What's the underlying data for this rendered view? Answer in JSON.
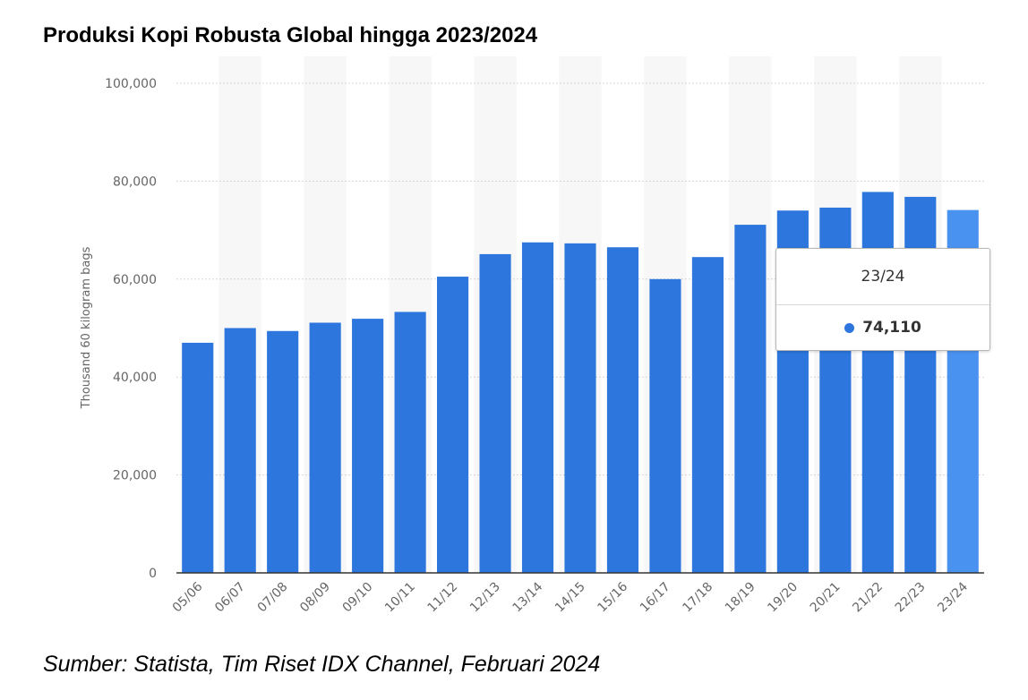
{
  "title": "Produksi Kopi Robusta Global hingga 2023/2024",
  "source": "Sumber: Statista, Tim Riset IDX Channel, Februari 2024",
  "colors": {
    "bar": "#2c76dd",
    "bar_highlight": "#4a92f0",
    "stripe": "#f7f7f7"
  },
  "tooltip": {
    "category": "23/24",
    "value": "74,110"
  },
  "chart_data": {
    "type": "bar",
    "ylabel": "Thousand 60 kilogram bags",
    "xlabel": "",
    "ylim": [
      0,
      100000
    ],
    "yticks": [
      0,
      20000,
      40000,
      60000,
      80000,
      100000
    ],
    "ytick_labels": [
      "0",
      "20,000",
      "40,000",
      "60,000",
      "80,000",
      "100,000"
    ],
    "grid": true,
    "categories": [
      "05/06",
      "06/07",
      "07/08",
      "08/09",
      "09/10",
      "10/11",
      "11/12",
      "12/13",
      "13/14",
      "14/15",
      "15/16",
      "16/17",
      "17/18",
      "18/19",
      "19/20",
      "20/21",
      "21/22",
      "22/23",
      "23/24"
    ],
    "values": [
      47000,
      50000,
      49400,
      51100,
      51900,
      53300,
      60500,
      65100,
      67500,
      67300,
      66500,
      60000,
      64500,
      71100,
      74000,
      74600,
      77800,
      76800,
      74110
    ],
    "highlighted": "23/24"
  }
}
